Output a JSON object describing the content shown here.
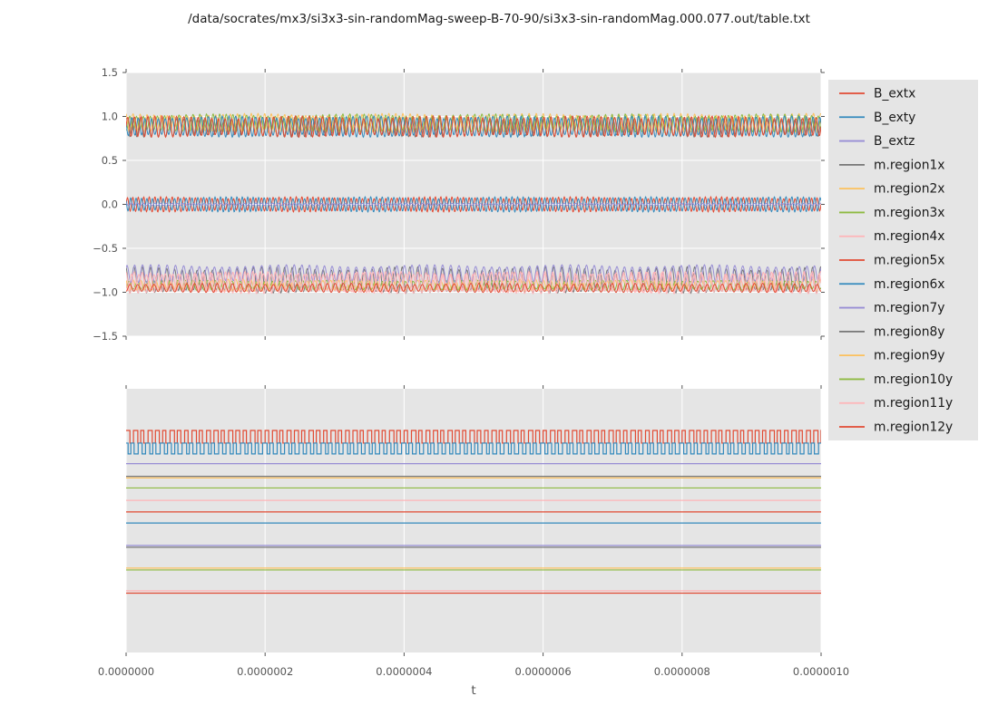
{
  "chart_data": {
    "type": "line",
    "title": "/data/socrates/mx3/si3x3-sin-randomMag-sweep-B-70-90/si3x3-sin-randomMag.000.077.out/table.txt",
    "xlabel": "t",
    "x_range": [
      0.0,
      1e-06
    ],
    "x_tick_labels": [
      "0.0000000",
      "0.0000002",
      "0.0000004",
      "0.0000006",
      "0.0000008",
      "0.0000010"
    ],
    "style": {
      "figure_bg": "#ffffff",
      "axes_bg": "#e5e5e5",
      "grid_color": "#ffffff",
      "tick_color": "#555555",
      "text_color": "#1a1a1a",
      "legend_bg": "#e5e5e5"
    },
    "legend": {
      "position": "right-outside",
      "entries": [
        {
          "label": "B_extx",
          "color": "#E24A33"
        },
        {
          "label": "B_exty",
          "color": "#348ABD"
        },
        {
          "label": "B_extz",
          "color": "#988ED5"
        },
        {
          "label": "m.region1x",
          "color": "#777777"
        },
        {
          "label": "m.region2x",
          "color": "#FBC15E"
        },
        {
          "label": "m.region3x",
          "color": "#8EBA42"
        },
        {
          "label": "m.region4x",
          "color": "#FFB5B8"
        },
        {
          "label": "m.region5x",
          "color": "#E24A33"
        },
        {
          "label": "m.region6x",
          "color": "#348ABD"
        },
        {
          "label": "m.region7y",
          "color": "#988ED5"
        },
        {
          "label": "m.region8y",
          "color": "#777777"
        },
        {
          "label": "m.region9y",
          "color": "#FBC15E"
        },
        {
          "label": "m.region10y",
          "color": "#8EBA42"
        },
        {
          "label": "m.region11y",
          "color": "#FFB5B8"
        },
        {
          "label": "m.region12y",
          "color": "#E24A33"
        }
      ]
    },
    "subplots": [
      {
        "id": "top",
        "grid": "xy",
        "y_range": [
          -1.5,
          1.5
        ],
        "y_tick_values": [
          1.5,
          1.0,
          0.5,
          0.0,
          -0.5,
          -1.0,
          -1.5
        ],
        "y_tick_labels": [
          "1.5",
          "1.0",
          "0.5",
          "0.0",
          "−0.5",
          "−1.0",
          "−1.5"
        ],
        "series": [
          {
            "name": "m.region1x",
            "color": "#777777",
            "wave": "sine",
            "center": 0.875,
            "amp": 0.095,
            "cycles": 100,
            "phase": 0.6
          },
          {
            "name": "m.region2x",
            "color": "#FBC15E",
            "wave": "sine",
            "center": 0.925,
            "amp": 0.095,
            "cycles": 100,
            "phase": 2.1
          },
          {
            "name": "m.region3x",
            "color": "#8EBA42",
            "wave": "sine",
            "center": 0.925,
            "amp": 0.09,
            "cycles": 101,
            "phase": 4.0
          },
          {
            "name": "m.region6x",
            "color": "#348ABD",
            "wave": "sine",
            "center": 0.885,
            "amp": 0.105,
            "cycles": 100,
            "phase": 3.2
          },
          {
            "name": "m.region5x",
            "color": "#E24A33",
            "wave": "sine",
            "center": 0.885,
            "amp": 0.105,
            "cycles": 100,
            "phase": 0.0
          },
          {
            "name": "B_extx",
            "color": "#E24A33",
            "wave": "sine",
            "center": 0.0,
            "amp": 0.075,
            "cycles": 124,
            "phase": 0.0
          },
          {
            "name": "B_exty",
            "color": "#348ABD",
            "wave": "sine",
            "center": 0.0,
            "amp": 0.075,
            "cycles": 124,
            "phase": 3.14
          },
          {
            "name": "B_extz",
            "color": "#988ED5",
            "wave": "sine",
            "center": 0.0,
            "amp": 0.012,
            "cycles": 124,
            "phase": 1.2
          },
          {
            "name": "m.region8y",
            "color": "#777777",
            "wave": "sine",
            "center": -0.86,
            "amp": 0.13,
            "cycles": 88,
            "phase": 1.3
          },
          {
            "name": "m.region9y",
            "color": "#FBC15E",
            "wave": "sine",
            "center": -0.92,
            "amp": 0.06,
            "cycles": 88,
            "phase": 2.8
          },
          {
            "name": "m.region10y",
            "color": "#8EBA42",
            "wave": "sine",
            "center": -0.92,
            "amp": 0.05,
            "cycles": 88,
            "phase": 5.0
          },
          {
            "name": "m.region7y",
            "color": "#988ED5",
            "wave": "sine",
            "center": -0.79,
            "amp": 0.09,
            "cycles": 88,
            "phase": 0.4
          },
          {
            "name": "m.region4x",
            "color": "#FFB5B8",
            "wave": "sine",
            "center": -0.885,
            "amp": 0.1,
            "cycles": 89,
            "phase": 3.5
          },
          {
            "name": "m.region11y",
            "color": "#FFB5B8",
            "wave": "sine",
            "center": -0.89,
            "amp": 0.11,
            "cycles": 88,
            "phase": 2.0
          },
          {
            "name": "m.region12y",
            "color": "#E24A33",
            "wave": "sine",
            "center": -0.95,
            "amp": 0.045,
            "cycles": 88,
            "phase": 4.2
          }
        ]
      },
      {
        "id": "bottom",
        "grid": "x",
        "y_axis": "unlabeled",
        "series": [
          {
            "name": "B_extx",
            "color": "#E24A33",
            "wave": "square",
            "y_frac_high": 0.158,
            "y_frac_low": 0.206,
            "cycles": 95,
            "phase": 0.0
          },
          {
            "name": "B_exty",
            "color": "#348ABD",
            "wave": "square",
            "y_frac_high": 0.206,
            "y_frac_low": 0.247,
            "cycles": 95,
            "phase": 0.35
          },
          {
            "name": "B_extz",
            "color": "#988ED5",
            "wave": "flat",
            "y_frac": 0.284
          },
          {
            "name": "m.region1x",
            "color": "#777777",
            "wave": "flat",
            "y_frac": 0.332
          },
          {
            "name": "m.region2x",
            "color": "#FBC15E",
            "wave": "flat",
            "y_frac": 0.338
          },
          {
            "name": "m.region3x",
            "color": "#8EBA42",
            "wave": "flat",
            "y_frac": 0.376
          },
          {
            "name": "m.region4x",
            "color": "#FFB5B8",
            "wave": "flat",
            "y_frac": 0.423
          },
          {
            "name": "m.region5x",
            "color": "#E24A33",
            "wave": "flat",
            "y_frac": 0.467
          },
          {
            "name": "m.region6x",
            "color": "#348ABD",
            "wave": "flat",
            "y_frac": 0.509
          },
          {
            "name": "m.region7y",
            "color": "#988ED5",
            "wave": "flat",
            "y_frac": 0.594
          },
          {
            "name": "m.region8y",
            "color": "#777777",
            "wave": "flat",
            "y_frac": 0.601
          },
          {
            "name": "m.region9y",
            "color": "#FBC15E",
            "wave": "flat",
            "y_frac": 0.68
          },
          {
            "name": "m.region10y",
            "color": "#8EBA42",
            "wave": "flat",
            "y_frac": 0.687
          },
          {
            "name": "m.region11y",
            "color": "#FFB5B8",
            "wave": "flat",
            "y_frac": 0.766
          },
          {
            "name": "m.region12y",
            "color": "#E24A33",
            "wave": "flat",
            "y_frac": 0.775
          }
        ]
      }
    ]
  }
}
